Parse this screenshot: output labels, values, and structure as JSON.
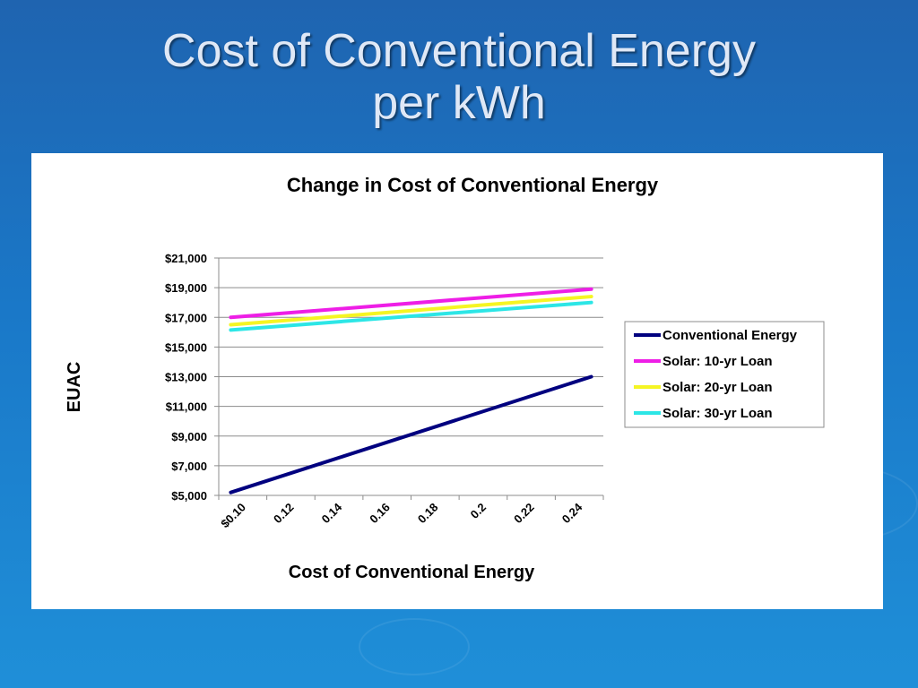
{
  "slide": {
    "title_line1": "Cost of Conventional Energy",
    "title_line2": "per kWh"
  },
  "colors": {
    "conventional": "#00007f",
    "solar10": "#ee1ee6",
    "solar20": "#f5f523",
    "solar30": "#2ce6e6"
  },
  "chart_data": {
    "type": "line",
    "title": "Change in Cost of Conventional Energy",
    "xlabel": "Cost of Conventional Energy",
    "ylabel": "EUAC",
    "categories": [
      "$0.10",
      "0.12",
      "0.14",
      "0.16",
      "0.18",
      "0.2",
      "0.22",
      "0.24"
    ],
    "x": [
      0.1,
      0.11,
      0.12,
      0.13,
      0.14,
      0.15,
      0.16,
      0.17,
      0.18,
      0.19,
      0.2,
      0.21,
      0.22,
      0.23,
      0.24,
      0.25
    ],
    "ylim": [
      5000,
      21000
    ],
    "yticks": [
      "$5,000",
      "$7,000",
      "$9,000",
      "$11,000",
      "$13,000",
      "$15,000",
      "$17,000",
      "$19,000",
      "$21,000"
    ],
    "grid": true,
    "legend_position": "right",
    "series": [
      {
        "name": "Conventional Energy",
        "color_key": "conventional",
        "start": 5200,
        "end": 13000
      },
      {
        "name": "Solar: 10-yr Loan",
        "color_key": "solar10",
        "start": 17000,
        "end": 18900
      },
      {
        "name": "Solar: 20-yr Loan",
        "color_key": "solar20",
        "start": 16500,
        "end": 18400
      },
      {
        "name": "Solar: 30-yr Loan",
        "color_key": "solar30",
        "start": 16150,
        "end": 18000
      }
    ]
  }
}
